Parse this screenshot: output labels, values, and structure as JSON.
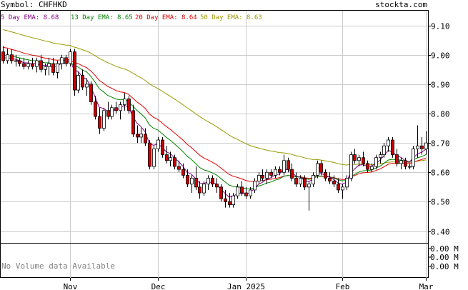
{
  "header": {
    "symbol_label": "Symbol: CHFHKD",
    "brand": "stockta.com",
    "ema_labels": [
      {
        "text": "5 Day EMA: 8.68",
        "color": "#800080"
      },
      {
        "text": "13 Day EMA: 8.65",
        "color": "#008000"
      },
      {
        "text": "20 Day EMA: 8.64",
        "color": "#e00000"
      },
      {
        "text": "50 Day EMA: 8.63",
        "color": "#999900"
      }
    ]
  },
  "volume_panel": {
    "message": "No Volume data Available",
    "tick_labels": [
      "0.00 M",
      "0.00 M",
      "0.00 M"
    ]
  },
  "colors": {
    "up_candle": "#ffffff",
    "down_candle": "#cc0000",
    "grid": "#cccccc",
    "ema5": "#800080",
    "ema13": "#008000",
    "ema20": "#e00000",
    "ema50": "#999900"
  },
  "chart_data": {
    "type": "candlestick",
    "y_ticks": [
      "9.10",
      "9.00",
      "8.90",
      "8.80",
      "8.70",
      "8.60",
      "8.50",
      "8.40"
    ],
    "ylim": [
      8.36,
      9.15
    ],
    "x_ticks": [
      {
        "label": "Nov",
        "index": 16
      },
      {
        "label": "Dec",
        "index": 37
      },
      {
        "label": "Jan 2025",
        "index": 58
      },
      {
        "label": "Feb",
        "index": 81
      },
      {
        "label": "Mar",
        "index": 101
      }
    ],
    "grid": true,
    "candles": [
      [
        9.01,
        9.03,
        8.97,
        8.98
      ],
      [
        8.98,
        9.02,
        8.97,
        9.0
      ],
      [
        9.0,
        9.02,
        8.97,
        8.98
      ],
      [
        8.98,
        9.0,
        8.96,
        8.98
      ],
      [
        8.98,
        8.99,
        8.96,
        8.97
      ],
      [
        8.97,
        8.99,
        8.95,
        8.96
      ],
      [
        8.96,
        8.98,
        8.95,
        8.97
      ],
      [
        8.97,
        8.99,
        8.95,
        8.96
      ],
      [
        8.96,
        8.99,
        8.94,
        8.98
      ],
      [
        8.98,
        9.0,
        8.94,
        8.95
      ],
      [
        8.95,
        8.97,
        8.93,
        8.96
      ],
      [
        8.96,
        8.99,
        8.93,
        8.97
      ],
      [
        8.97,
        8.99,
        8.93,
        8.94
      ],
      [
        8.94,
        8.98,
        8.92,
        8.97
      ],
      [
        8.97,
        9.0,
        8.95,
        8.99
      ],
      [
        8.99,
        9.0,
        8.96,
        8.97
      ],
      [
        8.97,
        9.02,
        8.96,
        9.01
      ],
      [
        9.01,
        9.02,
        8.86,
        8.88
      ],
      [
        8.88,
        8.94,
        8.87,
        8.93
      ],
      [
        8.93,
        8.95,
        8.88,
        8.89
      ],
      [
        8.89,
        8.92,
        8.86,
        8.9
      ],
      [
        8.9,
        8.91,
        8.83,
        8.84
      ],
      [
        8.84,
        8.86,
        8.78,
        8.79
      ],
      [
        8.79,
        8.82,
        8.73,
        8.75
      ],
      [
        8.75,
        8.82,
        8.74,
        8.81
      ],
      [
        8.81,
        8.84,
        8.78,
        8.79
      ],
      [
        8.79,
        8.83,
        8.78,
        8.82
      ],
      [
        8.82,
        8.84,
        8.8,
        8.81
      ],
      [
        8.81,
        8.84,
        8.78,
        8.83
      ],
      [
        8.83,
        8.87,
        8.81,
        8.85
      ],
      [
        8.85,
        8.86,
        8.8,
        8.81
      ],
      [
        8.81,
        8.83,
        8.72,
        8.73
      ],
      [
        8.73,
        8.76,
        8.7,
        8.72
      ],
      [
        8.72,
        8.75,
        8.7,
        8.73
      ],
      [
        8.73,
        8.75,
        8.69,
        8.7
      ],
      [
        8.7,
        8.71,
        8.61,
        8.62
      ],
      [
        8.62,
        8.69,
        8.61,
        8.68
      ],
      [
        8.68,
        8.72,
        8.67,
        8.71
      ],
      [
        8.71,
        8.72,
        8.65,
        8.66
      ],
      [
        8.66,
        8.69,
        8.63,
        8.64
      ],
      [
        8.64,
        8.67,
        8.62,
        8.65
      ],
      [
        8.65,
        8.66,
        8.61,
        8.62
      ],
      [
        8.62,
        8.64,
        8.6,
        8.61
      ],
      [
        8.61,
        8.63,
        8.58,
        8.59
      ],
      [
        8.59,
        8.61,
        8.55,
        8.56
      ],
      [
        8.56,
        8.59,
        8.53,
        8.58
      ],
      [
        8.58,
        8.62,
        8.54,
        8.55
      ],
      [
        8.55,
        8.57,
        8.51,
        8.53
      ],
      [
        8.53,
        8.57,
        8.52,
        8.56
      ],
      [
        8.56,
        8.59,
        8.54,
        8.58
      ],
      [
        8.58,
        8.59,
        8.55,
        8.56
      ],
      [
        8.56,
        8.58,
        8.53,
        8.55
      ],
      [
        8.55,
        8.56,
        8.5,
        8.51
      ],
      [
        8.51,
        8.54,
        8.48,
        8.5
      ],
      [
        8.5,
        8.53,
        8.48,
        8.49
      ],
      [
        8.49,
        8.53,
        8.48,
        8.52
      ],
      [
        8.52,
        8.56,
        8.51,
        8.55
      ],
      [
        8.55,
        8.57,
        8.52,
        8.53
      ],
      [
        8.53,
        8.55,
        8.51,
        8.52
      ],
      [
        8.52,
        8.55,
        8.51,
        8.54
      ],
      [
        8.54,
        8.58,
        8.53,
        8.57
      ],
      [
        8.57,
        8.6,
        8.56,
        8.59
      ],
      [
        8.59,
        8.61,
        8.57,
        8.58
      ],
      [
        8.58,
        8.61,
        8.56,
        8.6
      ],
      [
        8.6,
        8.61,
        8.58,
        8.59
      ],
      [
        8.59,
        8.62,
        8.58,
        8.61
      ],
      [
        8.61,
        8.62,
        8.59,
        8.6
      ],
      [
        8.6,
        8.66,
        8.59,
        8.64
      ],
      [
        8.64,
        8.65,
        8.6,
        8.61
      ],
      [
        8.61,
        8.63,
        8.57,
        8.58
      ],
      [
        8.58,
        8.6,
        8.55,
        8.56
      ],
      [
        8.56,
        8.59,
        8.55,
        8.58
      ],
      [
        8.58,
        8.59,
        8.54,
        8.55
      ],
      [
        8.55,
        8.57,
        8.47,
        8.56
      ],
      [
        8.56,
        8.6,
        8.55,
        8.59
      ],
      [
        8.59,
        8.64,
        8.58,
        8.63
      ],
      [
        8.63,
        8.64,
        8.59,
        8.6
      ],
      [
        8.6,
        8.61,
        8.57,
        8.58
      ],
      [
        8.58,
        8.6,
        8.56,
        8.57
      ],
      [
        8.57,
        8.59,
        8.55,
        8.56
      ],
      [
        8.56,
        8.58,
        8.53,
        8.54
      ],
      [
        8.54,
        8.56,
        8.51,
        8.55
      ],
      [
        8.55,
        8.59,
        8.54,
        8.58
      ],
      [
        8.58,
        8.67,
        8.57,
        8.66
      ],
      [
        8.66,
        8.68,
        8.63,
        8.64
      ],
      [
        8.64,
        8.66,
        8.62,
        8.65
      ],
      [
        8.65,
        8.67,
        8.62,
        8.63
      ],
      [
        8.63,
        8.64,
        8.6,
        8.61
      ],
      [
        8.61,
        8.63,
        8.6,
        8.62
      ],
      [
        8.62,
        8.66,
        8.61,
        8.65
      ],
      [
        8.65,
        8.67,
        8.63,
        8.66
      ],
      [
        8.66,
        8.7,
        8.65,
        8.69
      ],
      [
        8.69,
        8.72,
        8.67,
        8.71
      ],
      [
        8.71,
        8.72,
        8.65,
        8.66
      ],
      [
        8.66,
        8.68,
        8.62,
        8.63
      ],
      [
        8.63,
        8.65,
        8.61,
        8.64
      ],
      [
        8.64,
        8.65,
        8.61,
        8.62
      ],
      [
        8.62,
        8.63,
        8.61,
        8.62
      ],
      [
        8.62,
        8.69,
        8.61,
        8.68
      ],
      [
        8.68,
        8.76,
        8.65,
        8.69
      ],
      [
        8.69,
        8.72,
        8.66,
        8.68
      ],
      [
        8.68,
        8.74,
        8.66,
        8.7
      ]
    ],
    "ema_periods": [
      5,
      13,
      20,
      50
    ],
    "ema_seed": [
      8.99,
      9.0,
      9.03,
      9.09
    ]
  }
}
